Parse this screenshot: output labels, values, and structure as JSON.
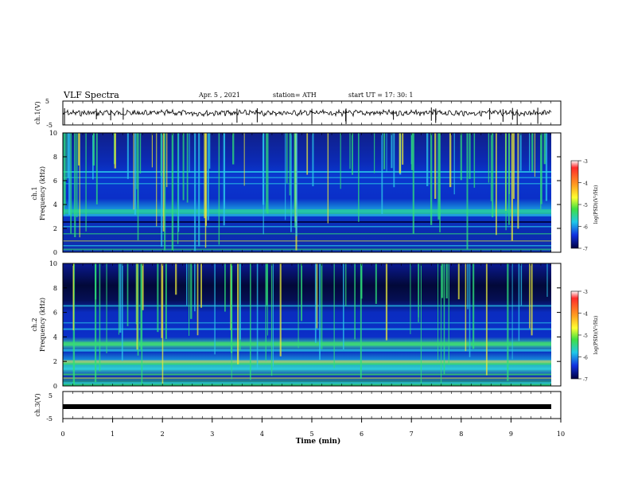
{
  "header": {
    "title": "VLF Spectra",
    "date": "Apr. 5 , 2021",
    "station": "station= ATH",
    "start": "start UT = 17: 30: 1"
  },
  "chart_data": [
    {
      "type": "line",
      "panel": "ch1-waveform",
      "ylabel": "ch.1(V)",
      "ylim": [
        -5,
        5
      ],
      "yticks": [
        "5",
        "-5"
      ],
      "xlim": [
        0,
        10
      ],
      "series": [
        {
          "values": "noisy waveform around 0 V, amplitude approx 0.5 V with occasional spikes"
        }
      ]
    },
    {
      "type": "heatmap",
      "panel": "ch1-spectrogram",
      "ylabel_top": "ch.1",
      "ylabel": "Frequency (kHz)",
      "ylim": [
        0,
        10
      ],
      "yticks": [
        "0",
        "2",
        "4",
        "6",
        "8",
        "10"
      ],
      "xlim": [
        0,
        10
      ],
      "colorbar": {
        "label": "log(PSD)(V²/Hz)",
        "range": [
          -7,
          -3
        ],
        "ticks": [
          "-3",
          "-4",
          "-5",
          "-6",
          "-7"
        ]
      }
    },
    {
      "type": "heatmap",
      "panel": "ch2-spectrogram",
      "ylabel_top": "ch.2",
      "ylabel": "Frequency (kHz)",
      "ylim": [
        0,
        10
      ],
      "yticks": [
        "0",
        "2",
        "4",
        "6",
        "8",
        "10"
      ],
      "xlim": [
        0,
        10
      ],
      "colorbar": {
        "label": "log(PSD)(V²/Hz)",
        "range": [
          -7,
          -3
        ],
        "ticks": [
          "-3",
          "-4",
          "-5",
          "-6",
          "-7"
        ]
      }
    },
    {
      "type": "line",
      "panel": "ch3-waveform",
      "ylabel": "ch.3(V)",
      "ylim": [
        -5,
        5
      ],
      "yticks": [
        "5",
        "-5"
      ],
      "xlim": [
        0,
        10
      ],
      "series": [
        {
          "values": "flat band at approx -1 V"
        }
      ]
    }
  ],
  "xaxis": {
    "label": "Time (min)",
    "ticks": [
      "0",
      "1",
      "2",
      "3",
      "4",
      "5",
      "6",
      "7",
      "8",
      "9",
      "10"
    ]
  },
  "colors": {
    "background": "#ffffff",
    "axis": "#000000",
    "spectro_dark": "#000a4a",
    "spectro_blue": "#0a2fd0",
    "spectro_cyan": "#29c9e8",
    "spectro_green": "#3fe05a",
    "spectro_yellow": "#e8e83a"
  }
}
